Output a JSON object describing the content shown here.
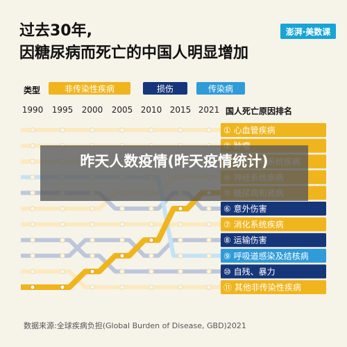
{
  "header": {
    "title_line1": "过去30年,",
    "title_line2": "因糖尿病而死亡的中国人明显增加",
    "brand": "澎湃·美数课"
  },
  "legend": {
    "label": "类型",
    "items": [
      {
        "label": "非传染性疾病",
        "color": "#f0b41d"
      },
      {
        "label": "损伤",
        "color": "#16367a"
      },
      {
        "label": "传染病",
        "color": "#2f9bd8"
      }
    ]
  },
  "rank_header": "国人死亡原因排名",
  "overlay": {
    "text": "昨天人数疫情(昨天疫情统计)"
  },
  "source": "数据来源:全球疾病负担(Global Burden of Disease, GBD)2021",
  "chart_data": {
    "type": "line",
    "title": "过去30年,因糖尿病而死亡的中国人明显增加",
    "x": [
      "1990",
      "1995",
      "2000",
      "2005",
      "2010",
      "2015",
      "2021"
    ],
    "ylabel": "国人死亡原因排名",
    "y_reversed": true,
    "ylim": [
      1,
      11
    ],
    "highlight_series": "糖尿病和肾病",
    "series": [
      {
        "name": "心血管疾病",
        "rank": 1,
        "type": "非传染性疾病",
        "values": [
          1,
          1,
          1,
          1,
          1,
          1,
          1
        ]
      },
      {
        "name": "肿瘤",
        "rank": 2,
        "type": "非传染性疾病",
        "values": [
          2,
          2,
          2,
          2,
          2,
          2,
          2
        ]
      },
      {
        "name": "慢性呼吸系统疾病",
        "rank": 3,
        "type": "非传染性疾病",
        "values": [
          3,
          3,
          3,
          3,
          3,
          3,
          3
        ]
      },
      {
        "name": "神经系统疾病",
        "rank": 4,
        "type": "非传染性疾病",
        "values": [
          6,
          6,
          6,
          5,
          5,
          4,
          4
        ]
      },
      {
        "name": "糖尿病和肾病",
        "rank": 5,
        "type": "非传染性疾病",
        "values": [
          11,
          11,
          10,
          9,
          8,
          6,
          5
        ]
      },
      {
        "name": "意外伤害",
        "rank": 6,
        "type": "损伤",
        "values": [
          5,
          5,
          5,
          6,
          6,
          5,
          6
        ]
      },
      {
        "name": "消化系统疾病",
        "rank": 7,
        "type": "非传染性疾病",
        "values": [
          7,
          7,
          7,
          7,
          7,
          7,
          7
        ]
      },
      {
        "name": "运输伤害",
        "rank": 8,
        "type": "损伤",
        "values": [
          9,
          9,
          8,
          8,
          9,
          8,
          8
        ]
      },
      {
        "name": "呼吸道感染及结核病",
        "rank": 9,
        "type": "传染病",
        "values": [
          4,
          4,
          4,
          4,
          4,
          9,
          9
        ]
      },
      {
        "name": "自残、暴力",
        "rank": 10,
        "type": "损伤",
        "values": [
          8,
          8,
          9,
          10,
          10,
          10,
          10
        ]
      },
      {
        "name": "其他非传染性疾病",
        "rank": 11,
        "type": "非传染性疾病",
        "values": [
          10,
          10,
          11,
          11,
          11,
          11,
          11
        ]
      }
    ]
  }
}
